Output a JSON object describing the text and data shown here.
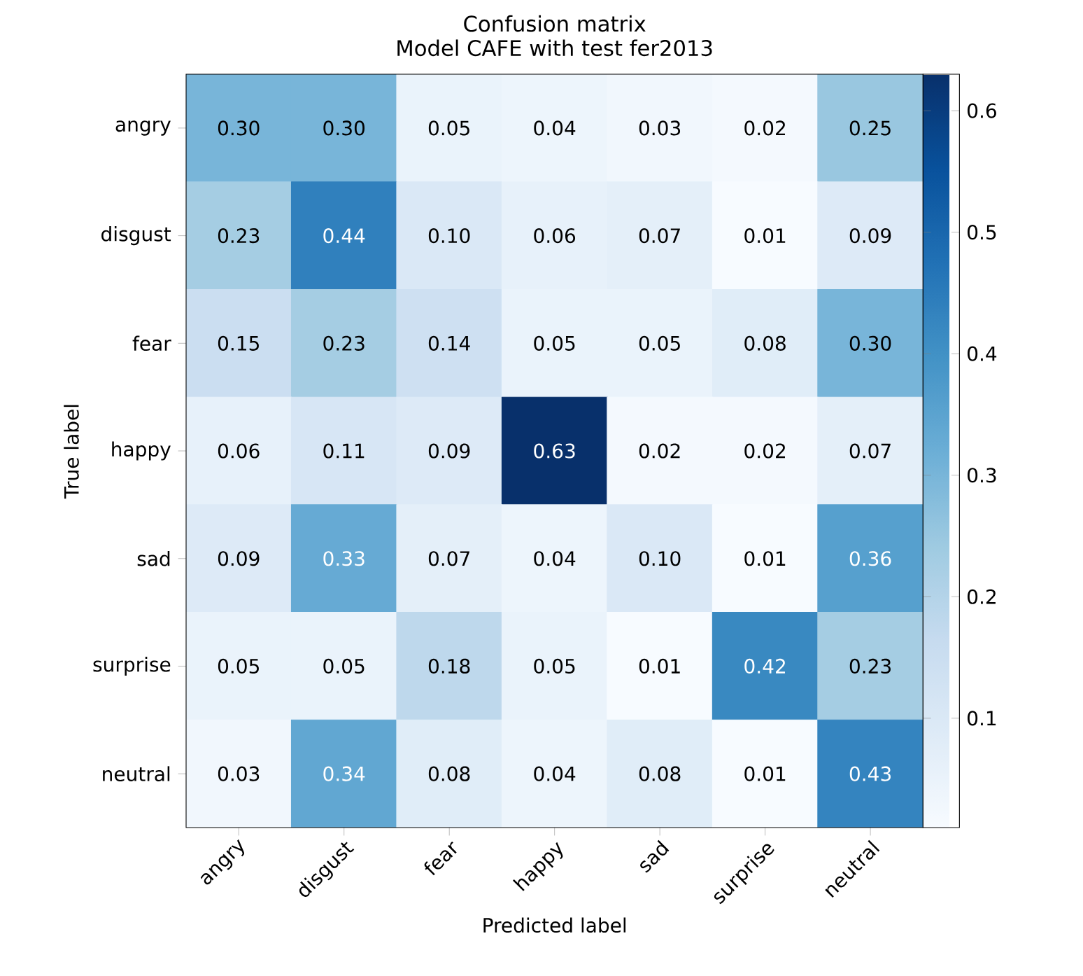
{
  "chart_data": {
    "type": "heatmap",
    "title": "Confusion matrix",
    "subtitle": "Model CAFE with test fer2013",
    "xlabel": "Predicted label",
    "ylabel": "True label",
    "categories": [
      "angry",
      "disgust",
      "fear",
      "happy",
      "sad",
      "surprise",
      "neutral"
    ],
    "y_categories": [
      "angry",
      "disgust",
      "fear",
      "happy",
      "sad",
      "surprise",
      "neutral"
    ],
    "cells": [
      [
        0.3,
        0.3,
        0.05,
        0.04,
        0.03,
        0.02,
        0.25
      ],
      [
        0.23,
        0.44,
        0.1,
        0.06,
        0.07,
        0.01,
        0.09
      ],
      [
        0.15,
        0.23,
        0.14,
        0.05,
        0.05,
        0.08,
        0.3
      ],
      [
        0.06,
        0.11,
        0.09,
        0.63,
        0.02,
        0.02,
        0.07
      ],
      [
        0.09,
        0.33,
        0.07,
        0.04,
        0.1,
        0.01,
        0.36
      ],
      [
        0.05,
        0.05,
        0.18,
        0.05,
        0.01,
        0.42,
        0.23
      ],
      [
        0.03,
        0.34,
        0.08,
        0.04,
        0.08,
        0.01,
        0.43
      ]
    ],
    "cell_labels": [
      [
        "0.30",
        "0.30",
        "0.05",
        "0.04",
        "0.03",
        "0.02",
        "0.25"
      ],
      [
        "0.23",
        "0.44",
        "0.10",
        "0.06",
        "0.07",
        "0.01",
        "0.09"
      ],
      [
        "0.15",
        "0.23",
        "0.14",
        "0.05",
        "0.05",
        "0.08",
        "0.30"
      ],
      [
        "0.06",
        "0.11",
        "0.09",
        "0.63",
        "0.02",
        "0.02",
        "0.07"
      ],
      [
        "0.09",
        "0.33",
        "0.07",
        "0.04",
        "0.10",
        "0.01",
        "0.36"
      ],
      [
        "0.05",
        "0.05",
        "0.18",
        "0.05",
        "0.01",
        "0.42",
        "0.23"
      ],
      [
        "0.03",
        "0.34",
        "0.08",
        "0.04",
        "0.08",
        "0.01",
        "0.43"
      ]
    ],
    "clim": [
      0.01,
      0.63
    ],
    "cticks": [
      0.1,
      0.2,
      0.3,
      0.4,
      0.5,
      0.6
    ]
  }
}
